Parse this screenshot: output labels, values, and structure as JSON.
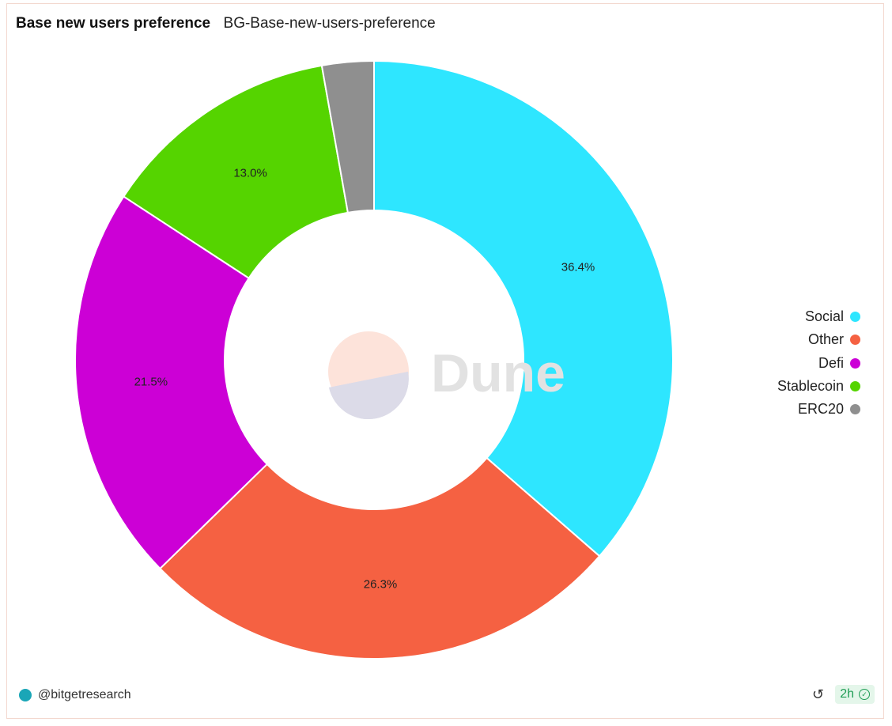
{
  "header": {
    "title": "Base new users preference",
    "subtitle": "BG-Base-new-users-preference"
  },
  "chart_data": {
    "type": "pie",
    "donut": true,
    "categories": [
      "Social",
      "Other",
      "Defi",
      "Stablecoin",
      "ERC20"
    ],
    "values": [
      36.4,
      26.3,
      21.5,
      13.0,
      2.8
    ],
    "data_labels": [
      "36.4%",
      "26.3%",
      "21.5%",
      "13.0%",
      ""
    ],
    "colors": [
      "#2ee6ff",
      "#f56142",
      "#cc00d6",
      "#55d400",
      "#8f8f8f"
    ],
    "legend_position": "right",
    "watermark": "Dune"
  },
  "legend": {
    "items": [
      "Social",
      "Other",
      "Defi",
      "Stablecoin",
      "ERC20"
    ]
  },
  "footer": {
    "author": "@bitgetresearch",
    "age": "2h",
    "refresh_icon": "refresh-icon",
    "check_icon": "check-circle-icon"
  }
}
